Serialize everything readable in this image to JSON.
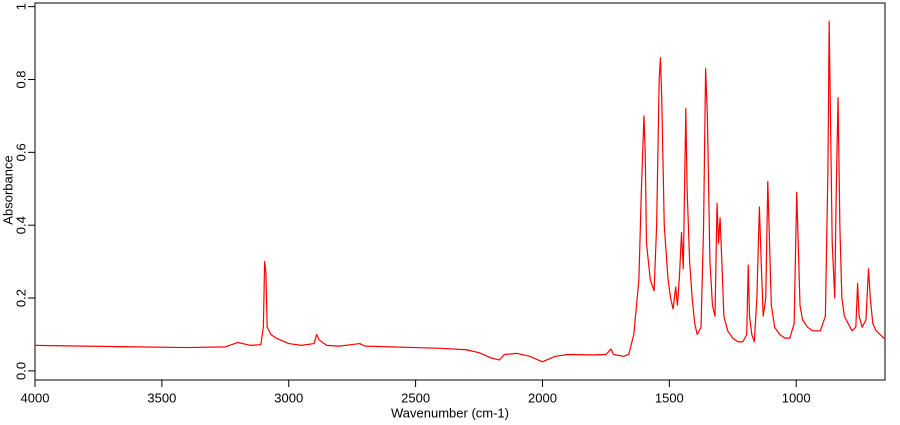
{
  "chart_data": {
    "type": "line",
    "xlabel": "Wavenumber (cm-1)",
    "ylabel": "Absorbance",
    "color": "#ff0000",
    "xlim": [
      4000,
      650
    ],
    "ylim": [
      -0.025,
      1.01
    ],
    "xticks": [
      4000,
      3500,
      3000,
      2500,
      2000,
      1500,
      1000
    ],
    "yticks": [
      {
        "value": 0,
        "label": "0.0"
      },
      0.2,
      0.4,
      0.6,
      0.8,
      1
    ],
    "x": [
      4000,
      3800,
      3600,
      3400,
      3250,
      3200,
      3150,
      3110,
      3100,
      3095,
      3090,
      3085,
      3070,
      3050,
      3000,
      2950,
      2900,
      2890,
      2880,
      2850,
      2800,
      2720,
      2700,
      2600,
      2500,
      2400,
      2300,
      2250,
      2200,
      2170,
      2150,
      2100,
      2050,
      2000,
      1950,
      1900,
      1800,
      1750,
      1730,
      1720,
      1680,
      1660,
      1640,
      1620,
      1610,
      1600,
      1595,
      1590,
      1575,
      1560,
      1550,
      1540,
      1535,
      1530,
      1520,
      1505,
      1495,
      1485,
      1475,
      1468,
      1460,
      1452,
      1445,
      1435,
      1430,
      1420,
      1410,
      1400,
      1390,
      1375,
      1365,
      1357,
      1350,
      1340,
      1330,
      1320,
      1312,
      1306,
      1300,
      1293,
      1285,
      1270,
      1250,
      1230,
      1210,
      1195,
      1189,
      1184,
      1175,
      1165,
      1155,
      1145,
      1138,
      1130,
      1120,
      1112,
      1105,
      1098,
      1085,
      1065,
      1045,
      1025,
      1008,
      998,
      992,
      985,
      975,
      955,
      935,
      905,
      885,
      875,
      870,
      865,
      858,
      848,
      842,
      835,
      828,
      820,
      810,
      795,
      780,
      765,
      758,
      752,
      740,
      725,
      715,
      708,
      698,
      685,
      670,
      655,
      650
    ],
    "values": [
      0.07,
      0.068,
      0.066,
      0.064,
      0.066,
      0.078,
      0.07,
      0.072,
      0.12,
      0.3,
      0.27,
      0.12,
      0.1,
      0.09,
      0.075,
      0.07,
      0.075,
      0.1,
      0.085,
      0.07,
      0.068,
      0.075,
      0.068,
      0.066,
      0.064,
      0.062,
      0.058,
      0.05,
      0.035,
      0.03,
      0.045,
      0.048,
      0.04,
      0.025,
      0.04,
      0.045,
      0.044,
      0.045,
      0.06,
      0.045,
      0.04,
      0.045,
      0.1,
      0.25,
      0.5,
      0.7,
      0.6,
      0.35,
      0.25,
      0.22,
      0.4,
      0.8,
      0.86,
      0.75,
      0.4,
      0.25,
      0.2,
      0.17,
      0.23,
      0.18,
      0.26,
      0.38,
      0.28,
      0.72,
      0.5,
      0.3,
      0.2,
      0.13,
      0.1,
      0.12,
      0.4,
      0.83,
      0.7,
      0.3,
      0.18,
      0.15,
      0.46,
      0.35,
      0.42,
      0.3,
      0.15,
      0.11,
      0.09,
      0.08,
      0.08,
      0.1,
      0.29,
      0.15,
      0.1,
      0.08,
      0.2,
      0.45,
      0.3,
      0.15,
      0.2,
      0.52,
      0.35,
      0.18,
      0.12,
      0.1,
      0.09,
      0.09,
      0.13,
      0.49,
      0.35,
      0.18,
      0.14,
      0.12,
      0.11,
      0.11,
      0.15,
      0.55,
      0.96,
      0.7,
      0.35,
      0.2,
      0.5,
      0.75,
      0.4,
      0.2,
      0.15,
      0.13,
      0.11,
      0.12,
      0.24,
      0.15,
      0.12,
      0.14,
      0.28,
      0.2,
      0.13,
      0.11,
      0.1,
      0.09,
      0.09
    ]
  }
}
